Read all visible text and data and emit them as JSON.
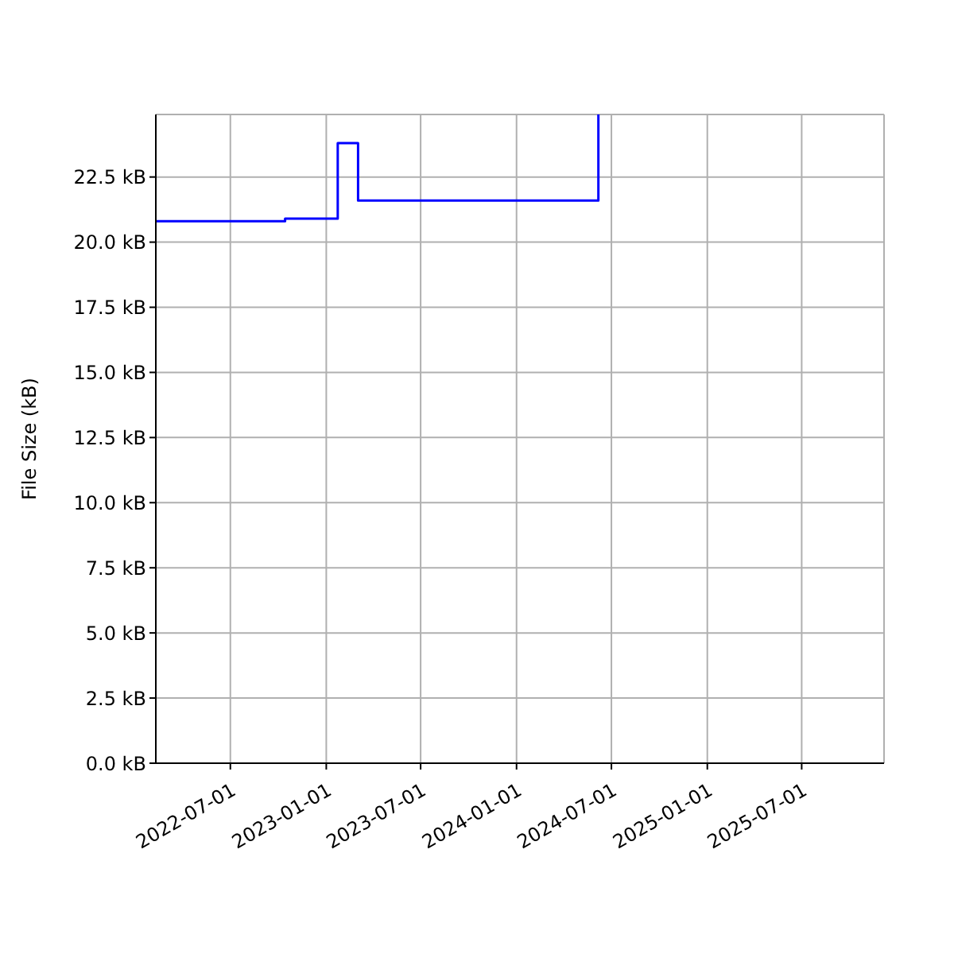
{
  "chart_data": {
    "type": "step",
    "ylabel": "File Size (kB)",
    "x": [
      "2022-02-08",
      "2022-10-14",
      "2023-01-23",
      "2023-03-03",
      "2024-06-06",
      "2024-06-06"
    ],
    "series": [
      {
        "color": "#0000ff",
        "values": [
          20.8,
          20.9,
          23.8,
          21.6,
          21.6,
          24.9
        ]
      }
    ],
    "xlim": [
      "2022-02-08",
      "2025-12-06"
    ],
    "xticks": [
      "2022-07-01",
      "2023-01-01",
      "2023-07-01",
      "2024-01-01",
      "2024-07-01",
      "2025-01-01",
      "2025-07-01"
    ],
    "ylim": [
      0,
      24.9
    ],
    "yticks": [
      {
        "value": 0,
        "label": "0.0 kB"
      },
      {
        "value": 2.5,
        "label": "2.5 kB"
      },
      {
        "value": 5,
        "label": "5.0 kB"
      },
      {
        "value": 7.5,
        "label": "7.5 kB"
      },
      {
        "value": 10,
        "label": "10.0 kB"
      },
      {
        "value": 12.5,
        "label": "12.5 kB"
      },
      {
        "value": 15,
        "label": "15.0 kB"
      },
      {
        "value": 17.5,
        "label": "17.5 kB"
      },
      {
        "value": 20,
        "label": "20.0 kB"
      },
      {
        "value": 22.5,
        "label": "22.5 kB"
      }
    ],
    "grid": true,
    "marker": "none",
    "line_style": "solid"
  }
}
